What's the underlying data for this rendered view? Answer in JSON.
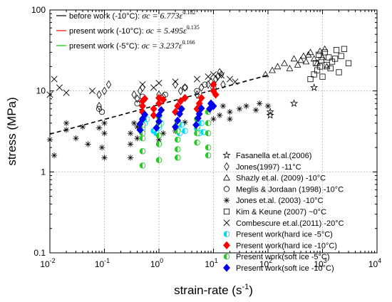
{
  "chart_data": {
    "type": "scatter",
    "xlabel": "strain-rate (s",
    "xlabel_sup": "-1",
    "xlabel_end": ")",
    "ylabel": "stress (MPa)",
    "xscale": "log",
    "yscale": "log",
    "xlim": [
      0.01,
      10000
    ],
    "ylim": [
      0.1,
      100
    ],
    "grid": true,
    "legend_position": "bottom-right",
    "x_tick_labels": [
      {
        "base": "10",
        "exp": "-2"
      },
      {
        "base": "10",
        "exp": "-1"
      },
      {
        "base": "10",
        "exp": "0"
      },
      {
        "base": "10",
        "exp": "1"
      },
      {
        "base": "10",
        "exp": "2"
      },
      {
        "base": "10",
        "exp": "3"
      },
      {
        "base": "10",
        "exp": "4"
      }
    ],
    "y_tick_labels": [
      "0.1",
      "1",
      "10",
      "100"
    ],
    "fit_lines": [
      {
        "label": "before work",
        "temp": "(-10°C)",
        "equation": "σc = 6.773ε̇",
        "exponent": "0.182",
        "a": 6.773,
        "b": 0.182,
        "color": "#000000",
        "dashed": true
      },
      {
        "label": "present work",
        "temp": "(-10°C)",
        "equation": "σc = 5.495ε̇",
        "exponent": "0.135",
        "a": 5.495,
        "b": 0.135,
        "color": "#ff0000",
        "dashed": false
      },
      {
        "label": "present work",
        "temp": "(-5°C)",
        "equation": "σc = 3.237ε̇",
        "exponent": "0.166",
        "a": 3.237,
        "b": 0.166,
        "color": "#00cc00",
        "dashed": false
      }
    ],
    "series": [
      {
        "name": "Fasanella et.al.(2006)",
        "marker": "star",
        "points": [
          [
            110,
            5.0
          ],
          [
            110,
            5.5
          ],
          [
            300,
            7.0
          ],
          [
            700,
            11.0
          ]
        ]
      },
      {
        "name": "Jones(1997) -11°C",
        "marker": "diamond-open",
        "points": [
          [
            0.08,
            6.5
          ],
          [
            0.08,
            9.0
          ],
          [
            0.1,
            10.0
          ],
          [
            0.12,
            12.0
          ],
          [
            0.35,
            9.0
          ],
          [
            0.4,
            8.0
          ],
          [
            0.45,
            10.0
          ],
          [
            0.5,
            11.0
          ],
          [
            1,
            9.0
          ],
          [
            1.2,
            8.5
          ],
          [
            2,
            12.0
          ],
          [
            2.5,
            10.0
          ],
          [
            3,
            11.0
          ],
          [
            5,
            9.0
          ],
          [
            6,
            11.0
          ],
          [
            8,
            12.0
          ],
          [
            9,
            13.0
          ],
          [
            11,
            14.0
          ],
          [
            12,
            15.0
          ],
          [
            14,
            16.0
          ],
          [
            15,
            12.0
          ],
          [
            13,
            17.0
          ]
        ]
      },
      {
        "name": "Shazly et.al. (2009) -10°C",
        "marker": "triangle-open",
        "points": [
          [
            90,
            16.0
          ],
          [
            120,
            18.0
          ],
          [
            150,
            20.0
          ],
          [
            200,
            22.0
          ],
          [
            250,
            19.0
          ],
          [
            300,
            25.0
          ],
          [
            350,
            21.0
          ],
          [
            400,
            24.0
          ],
          [
            450,
            27.0
          ],
          [
            500,
            23.0
          ],
          [
            550,
            28.0
          ],
          [
            600,
            30.0
          ],
          [
            700,
            25.0
          ],
          [
            800,
            22.0
          ],
          [
            900,
            31.0
          ],
          [
            1000,
            26.0
          ],
          [
            1100,
            33.0
          ],
          [
            1200,
            20.0
          ]
        ]
      },
      {
        "name": "Meglis & Jordaan (1998) -10°C",
        "marker": "circle-open",
        "points": [
          [
            0.08,
            6.0
          ],
          [
            0.09,
            5.5
          ],
          [
            0.4,
            7.0
          ],
          [
            0.5,
            8.5
          ],
          [
            1.3,
            9.0
          ],
          [
            3,
            11.0
          ],
          [
            5,
            10.0
          ],
          [
            7,
            12.0
          ],
          [
            10,
            11.0
          ]
        ]
      },
      {
        "name": "Jones et.al. (2003) -10°C",
        "marker": "asterisk",
        "points": [
          [
            0.01,
            2.5
          ],
          [
            0.012,
            1.6
          ],
          [
            0.02,
            3.3
          ],
          [
            0.02,
            4.0
          ],
          [
            0.03,
            2.6
          ],
          [
            0.04,
            3.6
          ],
          [
            0.05,
            2.2
          ],
          [
            0.08,
            3.5
          ],
          [
            0.09,
            2.0
          ],
          [
            0.1,
            1.5
          ],
          [
            0.1,
            3.0
          ],
          [
            0.1,
            4.0
          ],
          [
            0.3,
            1.5
          ],
          [
            0.3,
            2.2
          ],
          [
            0.3,
            3.0
          ],
          [
            0.35,
            4.0
          ],
          [
            0.4,
            2.6
          ],
          [
            0.4,
            3.6
          ],
          [
            1,
            2.5
          ],
          [
            1,
            4.0
          ],
          [
            1.2,
            3.0
          ],
          [
            2,
            3.2
          ],
          [
            3,
            4.1
          ],
          [
            5,
            3.8
          ],
          [
            10,
            4.5
          ],
          [
            13,
            5.0
          ],
          [
            15,
            6.5
          ],
          [
            20,
            5.5
          ],
          [
            20,
            4.5
          ],
          [
            30,
            6.0
          ],
          [
            40,
            6.5
          ],
          [
            60,
            5.8
          ],
          [
            70,
            7.0
          ],
          [
            100,
            6.5
          ]
        ]
      },
      {
        "name": "Kim & Keune (2007) ~0°C",
        "marker": "square-open",
        "points": [
          [
            600,
            14.0
          ],
          [
            700,
            16.0
          ],
          [
            750,
            22.0
          ],
          [
            800,
            18.0
          ],
          [
            850,
            28.0
          ],
          [
            900,
            20.0
          ],
          [
            950,
            24.0
          ],
          [
            1000,
            15.0
          ],
          [
            1100,
            30.0
          ],
          [
            1200,
            21.0
          ],
          [
            1300,
            26.0
          ],
          [
            1400,
            19.0
          ],
          [
            1500,
            23.0
          ],
          [
            1700,
            25.0
          ],
          [
            1800,
            32.0
          ],
          [
            2000,
            17.0
          ],
          [
            2200,
            27.0
          ],
          [
            2500,
            33.0
          ],
          [
            3000,
            22.0
          ]
        ]
      },
      {
        "name": "Combescure et.al.(2011) -20°C",
        "marker": "x",
        "points": [
          [
            0.01,
            9.0
          ],
          [
            0.012,
            14.0
          ],
          [
            0.015,
            11.0
          ],
          [
            0.02,
            9.5
          ],
          [
            0.06,
            10.0
          ],
          [
            0.5,
            12.0
          ],
          [
            0.8,
            11.0
          ],
          [
            1,
            12.5
          ],
          [
            2,
            13.0
          ],
          [
            5,
            14.0
          ],
          [
            8,
            15.0
          ],
          [
            10,
            16.0
          ],
          [
            14,
            15.5
          ],
          [
            20,
            14.0
          ],
          [
            25,
            13.0
          ]
        ]
      },
      {
        "name": "Present work(hard ice -5°C)",
        "marker": "circle-half-cyan",
        "points": [
          [
            0.5,
            3.2
          ],
          [
            0.5,
            3.5
          ],
          [
            0.55,
            4.0
          ],
          [
            0.6,
            4.5
          ],
          [
            0.8,
            3.2
          ],
          [
            0.9,
            3.0
          ],
          [
            1.0,
            3.5
          ],
          [
            1.1,
            4.0
          ],
          [
            2.2,
            3.3
          ],
          [
            2.4,
            3.0
          ],
          [
            2.6,
            3.8
          ],
          [
            3.0,
            3.2
          ],
          [
            5.0,
            3.4
          ],
          [
            5.5,
            3.0
          ],
          [
            6.0,
            4.0
          ],
          [
            6.5,
            3.1
          ]
        ]
      },
      {
        "name": "Present work(hard ice -10°C)",
        "marker": "diamond-red",
        "points": [
          [
            0.5,
            5.5
          ],
          [
            0.5,
            6.5
          ],
          [
            0.5,
            7.5
          ],
          [
            0.55,
            8.0
          ],
          [
            0.8,
            5.0
          ],
          [
            0.8,
            6.0
          ],
          [
            1.0,
            7.0
          ],
          [
            1.0,
            8.2
          ],
          [
            1.2,
            7.8
          ],
          [
            2.0,
            5.5
          ],
          [
            2.2,
            6.5
          ],
          [
            2.5,
            7.5
          ],
          [
            3.0,
            8.2
          ],
          [
            5.0,
            6.0
          ],
          [
            5.5,
            7.0
          ],
          [
            6.0,
            8.2
          ],
          [
            9.0,
            7.0
          ],
          [
            10.0,
            10.0
          ],
          [
            10.0,
            12.0
          ],
          [
            11.0,
            9.0
          ]
        ]
      },
      {
        "name": "Present work(soft ice -5°C)",
        "marker": "circle-half-green",
        "points": [
          [
            0.5,
            1.2
          ],
          [
            0.5,
            1.8
          ],
          [
            0.5,
            2.6
          ],
          [
            0.5,
            3.0
          ],
          [
            0.5,
            3.8
          ],
          [
            0.5,
            4.5
          ],
          [
            1.0,
            1.4
          ],
          [
            1.0,
            2.2
          ],
          [
            1.0,
            2.8
          ],
          [
            1.0,
            3.8
          ],
          [
            1.0,
            4.8
          ],
          [
            2.2,
            1.5
          ],
          [
            2.2,
            1.9
          ],
          [
            2.2,
            2.5
          ],
          [
            2.2,
            3.2
          ],
          [
            2.2,
            4.0
          ],
          [
            5.0,
            2.3
          ],
          [
            5.0,
            3.0
          ],
          [
            5.0,
            3.6
          ],
          [
            5.0,
            4.5
          ],
          [
            8.0,
            1.6
          ],
          [
            8.0,
            2.0
          ],
          [
            8.0,
            3.0
          ],
          [
            8.0,
            4.0
          ],
          [
            8.0,
            5.5
          ]
        ]
      },
      {
        "name": "Present work(soft ice -10°C)",
        "marker": "diamond-blue",
        "points": [
          [
            0.45,
            3.3
          ],
          [
            0.45,
            3.9
          ],
          [
            0.5,
            4.5
          ],
          [
            0.55,
            5.1
          ],
          [
            0.9,
            3.5
          ],
          [
            1.0,
            4.2
          ],
          [
            1.0,
            5.0
          ],
          [
            1.1,
            5.8
          ],
          [
            2.0,
            3.6
          ],
          [
            2.2,
            4.3
          ],
          [
            2.4,
            5.2
          ],
          [
            2.6,
            6.0
          ],
          [
            4.8,
            3.8
          ],
          [
            5.2,
            4.6
          ],
          [
            5.5,
            5.2
          ],
          [
            6.0,
            6.1
          ],
          [
            8.5,
            6.0
          ],
          [
            9.0,
            7.0
          ],
          [
            10.0,
            6.5
          ]
        ]
      }
    ],
    "trend_line": {
      "style": "dashed",
      "a": 6.773,
      "b": 0.182,
      "x_range": [
        0.01,
        100
      ]
    }
  }
}
